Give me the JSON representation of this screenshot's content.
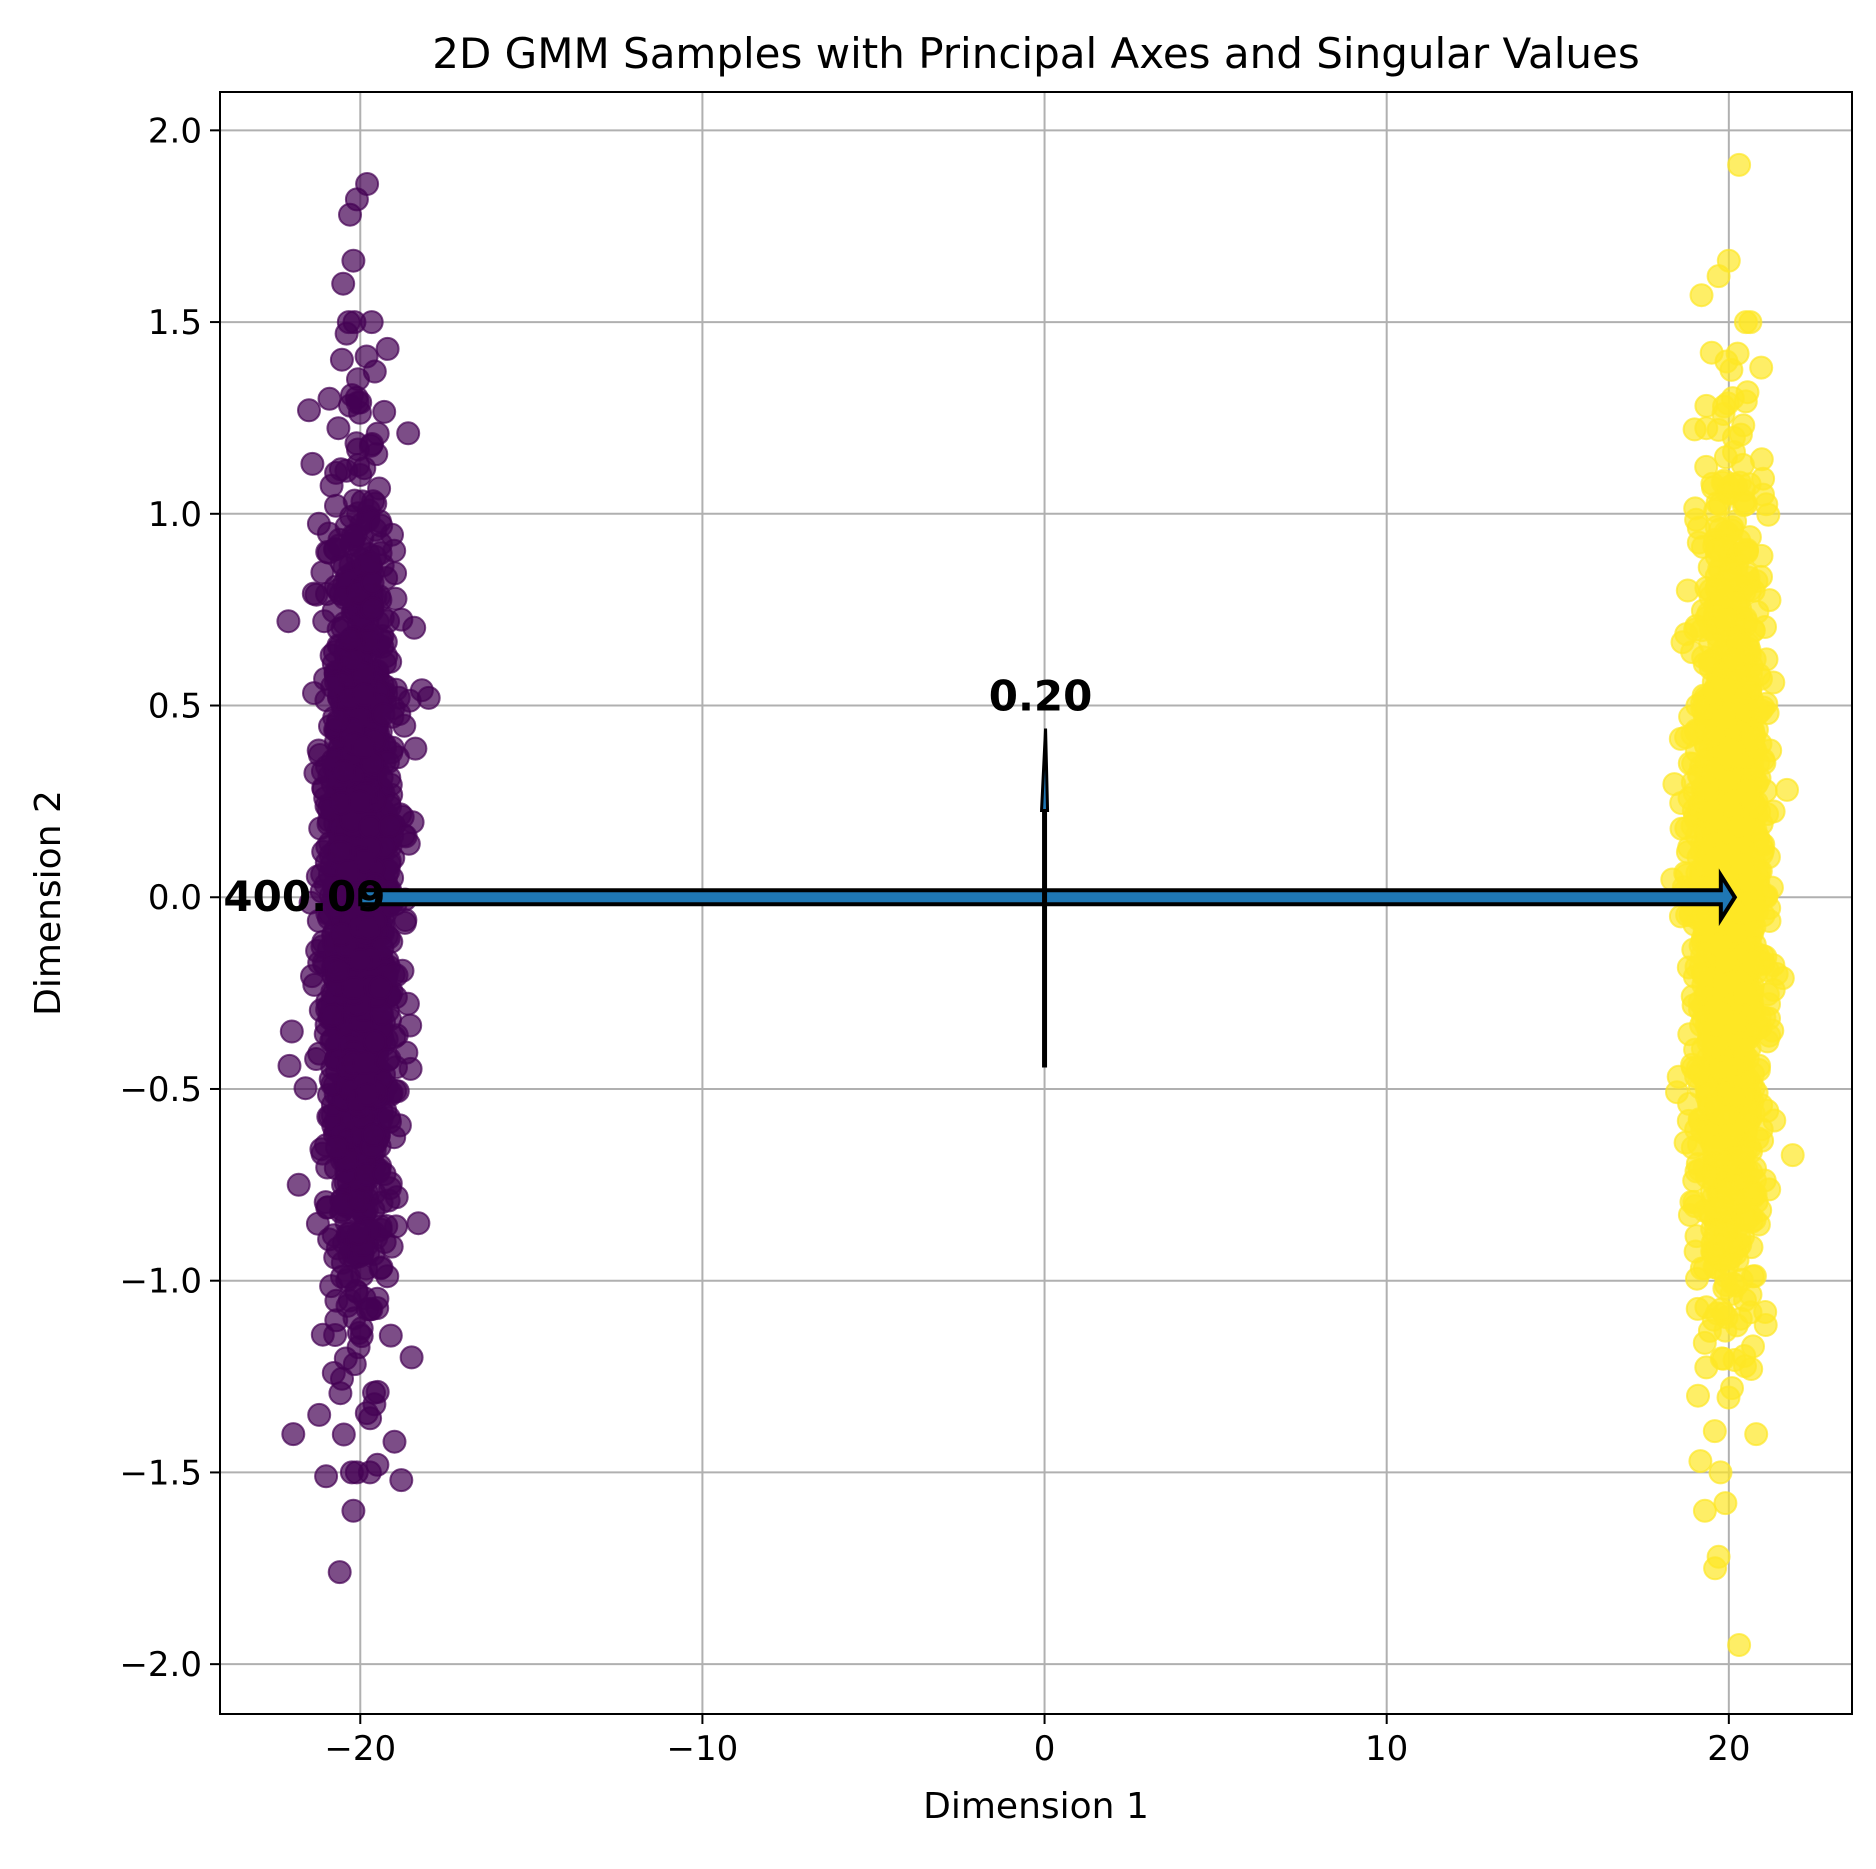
{
  "chart_data": {
    "type": "scatter",
    "title": "2D GMM Samples with Principal Axes and Singular Values",
    "xlabel": "Dimension 1",
    "ylabel": "Dimension 2",
    "xlim": [
      -24.1,
      23.6
    ],
    "ylim": [
      -2.13,
      2.1
    ],
    "grid": true,
    "x_ticks": [
      -20,
      -10,
      0,
      10,
      20
    ],
    "x_tick_labels": [
      "−20",
      "−10",
      "0",
      "10",
      "20"
    ],
    "y_ticks": [
      -2.0,
      -1.5,
      -1.0,
      -0.5,
      0.0,
      0.5,
      1.0,
      1.5,
      2.0
    ],
    "y_tick_labels": [
      "−2.0",
      "−1.5",
      "−1.0",
      "−0.5",
      "0.0",
      "0.5",
      "1.0",
      "1.5",
      "2.0"
    ],
    "series": [
      {
        "color": "#440154",
        "alpha": 0.7,
        "center": [
          -20.0,
          0.0
        ],
        "std": [
          0.5,
          0.5
        ],
        "points": [
          [
            -19.8,
            1.86
          ],
          [
            -20.1,
            1.82
          ],
          [
            -20.3,
            1.78
          ],
          [
            -20.2,
            1.66
          ],
          [
            -20.5,
            1.6
          ],
          [
            -22.0,
            -0.35
          ],
          [
            -20.6,
            -1.76
          ],
          [
            -20.2,
            -1.6
          ],
          [
            -18.8,
            -1.52
          ],
          [
            -21.0,
            -1.51
          ],
          [
            -20.4,
            1.47
          ],
          [
            -19.2,
            1.43
          ],
          [
            -21.5,
            1.27
          ],
          [
            -18.6,
            1.21
          ],
          [
            -22.1,
            0.72
          ],
          [
            -18.2,
            0.54
          ],
          [
            -18.0,
            0.52
          ],
          [
            -18.3,
            -0.85
          ],
          [
            -21.2,
            -1.35
          ],
          [
            -19.5,
            -1.48
          ],
          [
            -19.0,
            -1.42
          ],
          [
            -21.4,
            1.13
          ],
          [
            -20.9,
            1.3
          ],
          [
            -18.5,
            -1.2
          ],
          [
            -21.8,
            -0.75
          ]
        ]
      },
      {
        "color": "#fde725",
        "alpha": 0.7,
        "center": [
          20.0,
          0.0
        ],
        "std": [
          0.5,
          0.5
        ],
        "points": [
          [
            20.3,
            1.91
          ],
          [
            20.0,
            1.66
          ],
          [
            19.7,
            1.62
          ],
          [
            19.2,
            1.57
          ],
          [
            20.5,
            1.5
          ],
          [
            19.5,
            1.42
          ],
          [
            19.0,
            1.22
          ],
          [
            21.3,
            0.56
          ],
          [
            21.7,
            0.28
          ],
          [
            19.9,
            -1.58
          ],
          [
            19.7,
            -1.72
          ],
          [
            19.6,
            -1.75
          ],
          [
            20.3,
            -1.95
          ],
          [
            19.3,
            -1.6
          ],
          [
            18.8,
            0.8
          ],
          [
            18.6,
            -0.05
          ],
          [
            21.4,
            -0.2
          ],
          [
            20.8,
            -1.4
          ],
          [
            19.1,
            -1.3
          ],
          [
            21.0,
            1.05
          ]
        ]
      }
    ],
    "principal_axes": [
      {
        "singular_value_label": "400.09",
        "from": [
          0.0,
          0.0
        ],
        "to": [
          20.0,
          0.0
        ],
        "back_to": [
          -20.0,
          0.0
        ],
        "fill": "#1f77b4"
      },
      {
        "singular_value_label": "0.20",
        "from": [
          0.0,
          0.0
        ],
        "to": [
          0.0,
          0.44
        ],
        "back_to": [
          0.0,
          -0.44
        ]
      }
    ]
  }
}
